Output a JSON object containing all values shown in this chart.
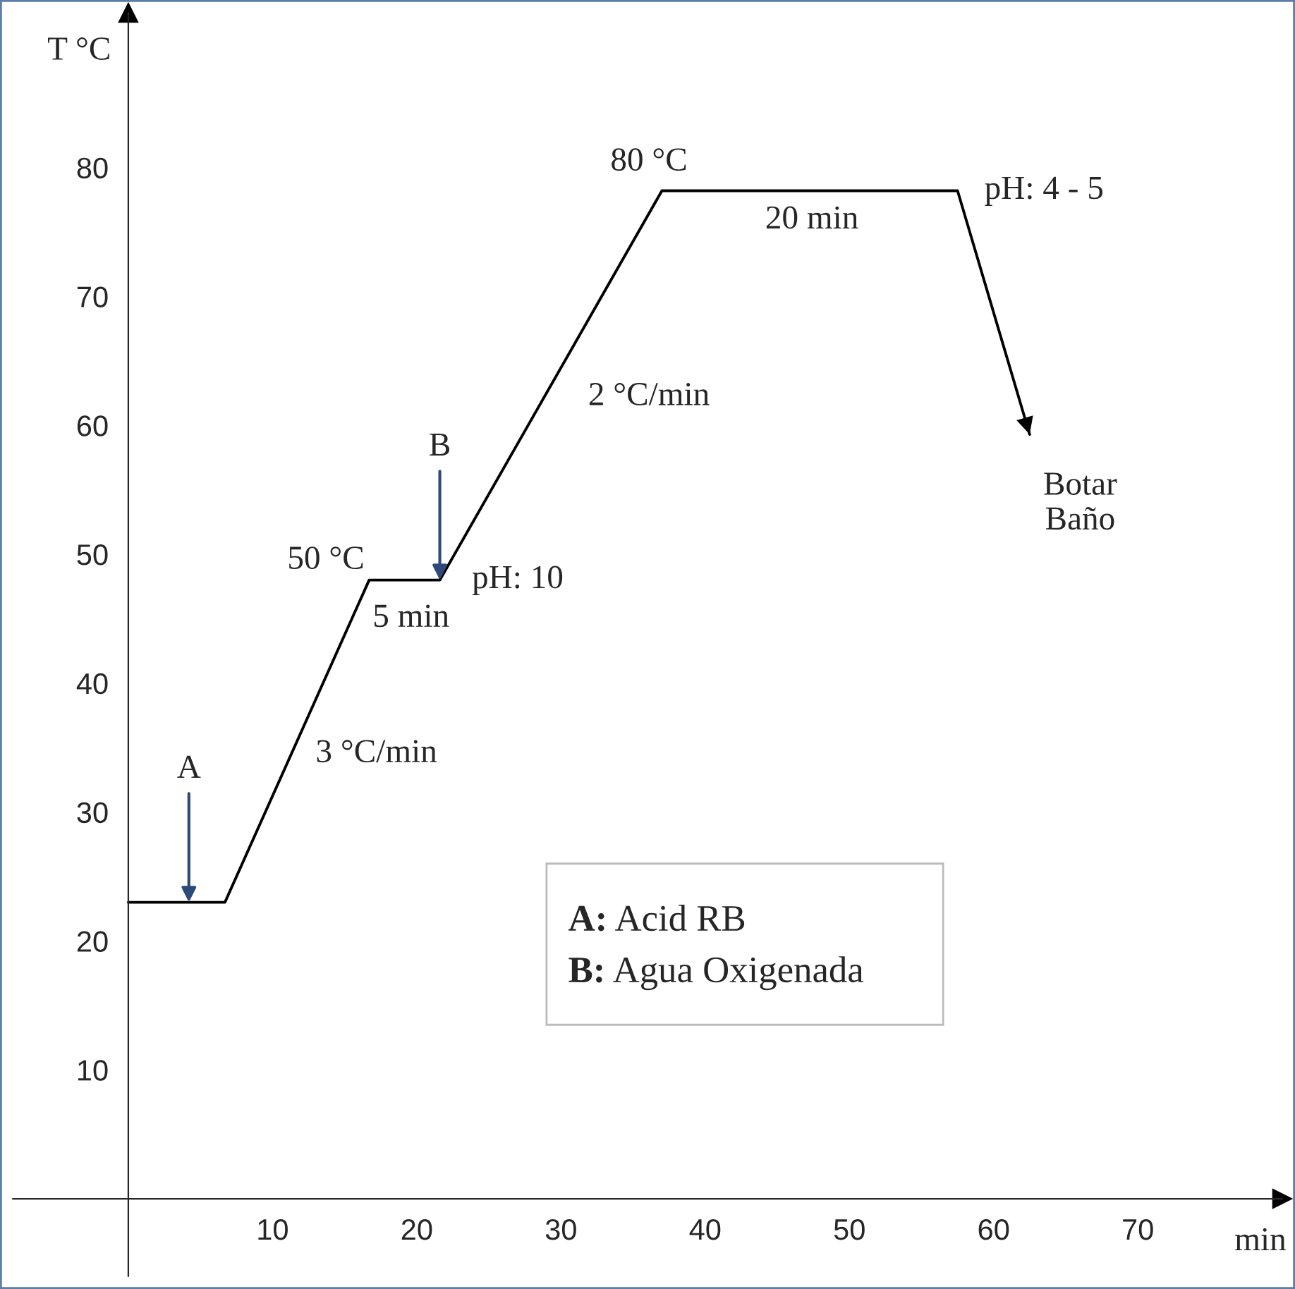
{
  "chart_data": {
    "type": "line",
    "xlabel": "min",
    "ylabel": "T °C",
    "x": [
      0,
      6.7,
      16.7,
      21.6,
      37,
      57.5,
      62.5
    ],
    "series": [
      {
        "color": "#000000",
        "values": [
          23,
          23,
          48,
          48,
          78.2,
          78.2,
          59.3
        ]
      }
    ],
    "xlim": [
      -8,
      80
    ],
    "ylim": [
      -6,
      92
    ],
    "xticks": [
      10,
      20,
      30,
      40,
      50,
      60,
      70
    ],
    "yticks": [
      10,
      20,
      30,
      40,
      50,
      60,
      70,
      80
    ],
    "grid": false,
    "marker": "none",
    "line_style": "solid",
    "annotations": [
      {
        "text": "A",
        "x": 4.2,
        "y": 23
      },
      {
        "text": "B",
        "x": 21.6,
        "y": 48
      },
      "50 °C",
      "5 min",
      "pH: 10",
      "3 °C/min",
      "80 °C",
      "20 min",
      "2 °C/min",
      "pH: 4 - 5",
      "Botar\nBaño",
      "A: Acid RB",
      "B: Agua Oxigenada"
    ]
  }
}
